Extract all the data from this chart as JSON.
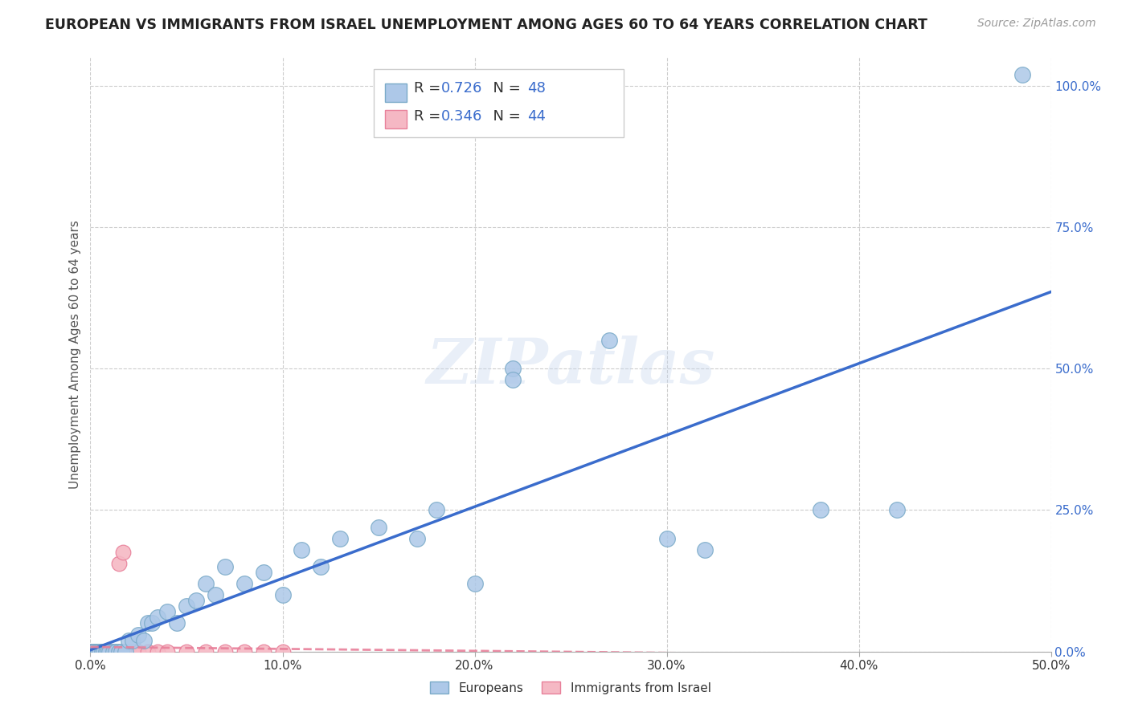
{
  "title": "EUROPEAN VS IMMIGRANTS FROM ISRAEL UNEMPLOYMENT AMONG AGES 60 TO 64 YEARS CORRELATION CHART",
  "source": "Source: ZipAtlas.com",
  "ylabel": "Unemployment Among Ages 60 to 64 years",
  "xlim": [
    0.0,
    0.5
  ],
  "ylim": [
    0.0,
    1.05
  ],
  "x_ticks": [
    0.0,
    0.1,
    0.2,
    0.3,
    0.4,
    0.5
  ],
  "x_tick_labels": [
    "0.0%",
    "10.0%",
    "20.0%",
    "30.0%",
    "40.0%",
    "50.0%"
  ],
  "y_ticks": [
    0.0,
    0.25,
    0.5,
    0.75,
    1.0
  ],
  "y_tick_labels": [
    "0.0%",
    "25.0%",
    "50.0%",
    "75.0%",
    "100.0%"
  ],
  "background_color": "#ffffff",
  "grid_color": "#cccccc",
  "watermark": "ZIPatlas",
  "blue_R": 0.726,
  "blue_N": 48,
  "pink_R": 0.346,
  "pink_N": 44,
  "blue_color": "#adc8e8",
  "blue_edge": "#7aaac8",
  "pink_color": "#f5b8c4",
  "pink_edge": "#e8809a",
  "blue_line_color": "#3a6ccc",
  "pink_line_color": "#e8809a",
  "legend_text_color": "#333333",
  "value_color": "#3a6ccc",
  "blue_x": [
    0.0,
    0.001,
    0.002,
    0.003,
    0.004,
    0.005,
    0.006,
    0.007,
    0.008,
    0.009,
    0.01,
    0.012,
    0.013,
    0.015,
    0.016,
    0.018,
    0.02,
    0.022,
    0.025,
    0.028,
    0.03,
    0.032,
    0.035,
    0.04,
    0.045,
    0.05,
    0.055,
    0.06,
    0.065,
    0.07,
    0.08,
    0.09,
    0.1,
    0.11,
    0.12,
    0.13,
    0.15,
    0.17,
    0.18,
    0.2,
    0.22,
    0.27,
    0.3,
    0.32,
    0.38,
    0.42,
    0.485,
    0.22
  ],
  "blue_y": [
    0.0,
    0.0,
    0.0,
    0.0,
    0.0,
    0.0,
    0.0,
    0.0,
    0.0,
    0.0,
    0.0,
    0.0,
    0.0,
    0.0,
    0.0,
    0.0,
    0.02,
    0.02,
    0.03,
    0.02,
    0.05,
    0.05,
    0.06,
    0.07,
    0.05,
    0.08,
    0.09,
    0.12,
    0.1,
    0.15,
    0.12,
    0.14,
    0.1,
    0.18,
    0.15,
    0.2,
    0.22,
    0.2,
    0.25,
    0.12,
    0.5,
    0.55,
    0.2,
    0.18,
    0.25,
    0.25,
    1.02,
    0.48
  ],
  "pink_x": [
    0.0,
    0.0,
    0.0,
    0.0,
    0.0,
    0.0,
    0.001,
    0.001,
    0.001,
    0.002,
    0.002,
    0.002,
    0.003,
    0.003,
    0.004,
    0.005,
    0.005,
    0.006,
    0.007,
    0.008,
    0.009,
    0.01,
    0.01,
    0.011,
    0.012,
    0.013,
    0.015,
    0.015,
    0.016,
    0.018,
    0.02,
    0.022,
    0.025,
    0.03,
    0.035,
    0.04,
    0.05,
    0.06,
    0.07,
    0.08,
    0.09,
    0.1,
    0.015,
    0.017
  ],
  "pink_y": [
    0.0,
    0.0,
    0.0,
    0.0,
    0.0,
    0.0,
    0.0,
    0.0,
    0.0,
    0.0,
    0.0,
    0.0,
    0.0,
    0.0,
    0.0,
    0.0,
    0.0,
    0.0,
    0.0,
    0.0,
    0.0,
    0.0,
    0.0,
    0.0,
    0.0,
    0.0,
    0.0,
    0.0,
    0.0,
    0.0,
    0.0,
    0.0,
    0.0,
    0.0,
    0.0,
    0.0,
    0.0,
    0.0,
    0.0,
    0.0,
    0.0,
    0.0,
    0.155,
    0.175
  ]
}
